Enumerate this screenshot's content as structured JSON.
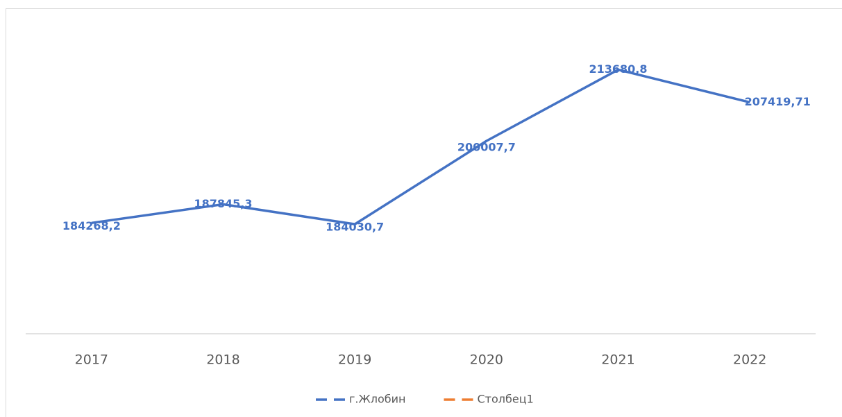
{
  "chart_data": {
    "type": "line",
    "categories": [
      "2017",
      "2018",
      "2019",
      "2020",
      "2021",
      "2022"
    ],
    "series": [
      {
        "name": "г.Жлобин",
        "color": "#4472c4",
        "values": [
          184268.2,
          187845.3,
          184030.7,
          200007.7,
          213680.8,
          207419.71
        ],
        "value_labels": [
          "184268,2",
          "187845,3",
          "184030,7",
          "200007,7",
          "213680,8",
          "207419,71"
        ]
      },
      {
        "name": "Столбец1",
        "color": "#ed7d31",
        "values": [
          null,
          null,
          null,
          null,
          null,
          null
        ]
      }
    ],
    "ylim": [
      163000,
      220000
    ],
    "legend": "bottom"
  }
}
